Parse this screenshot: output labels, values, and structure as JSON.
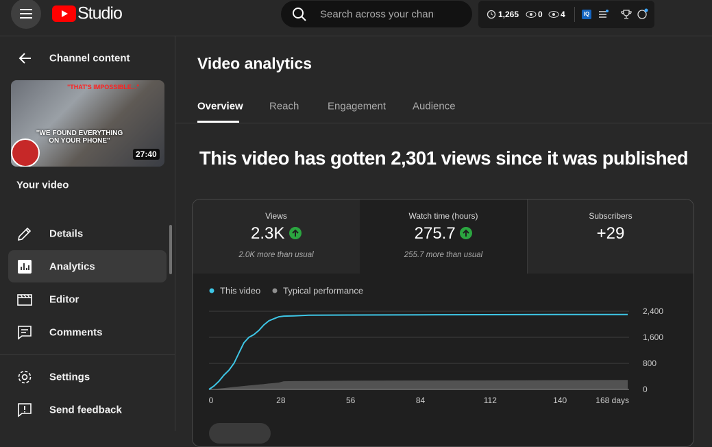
{
  "header": {
    "logo": "Studio",
    "search_placeholder": "Search across your channel",
    "stats": [
      "1,265",
      "0",
      "4"
    ],
    "badge": "IQ"
  },
  "sidebar": {
    "title": "Channel content",
    "thumbnail_caption_top": "\"THAT'S IMPOSSIBLE...\"",
    "thumbnail_caption": "\"WE FOUND EVERYTHING ON YOUR PHONE\"",
    "duration": "27:40",
    "video_label": "Your video",
    "nav": [
      "Details",
      "Analytics",
      "Editor",
      "Comments"
    ],
    "footer_nav": [
      "Settings",
      "Send feedback"
    ]
  },
  "main": {
    "title": "Video analytics",
    "tabs": [
      "Overview",
      "Reach",
      "Engagement",
      "Audience"
    ],
    "headline": "This video has gotten 2,301 views since it was published",
    "metrics": [
      {
        "label": "Views",
        "value": "2.3K",
        "note": "2.0K more than usual"
      },
      {
        "label": "Watch time (hours)",
        "value": "275.7",
        "note": "255.7 more than usual"
      },
      {
        "label": "Subscribers",
        "value": "+29"
      }
    ]
  },
  "chart_data": {
    "type": "line",
    "x": [
      0,
      2,
      4,
      6,
      8,
      10,
      12,
      14,
      16,
      18,
      20,
      22,
      24,
      26,
      28,
      30,
      34,
      40,
      56,
      84,
      112,
      140,
      168
    ],
    "series": [
      {
        "name": "This video",
        "color": "#3ec6e6",
        "values": [
          0,
          105,
          250,
          440,
          590,
          800,
          1115,
          1430,
          1600,
          1685,
          1810,
          1980,
          2105,
          2170,
          2230,
          2250,
          2260,
          2280,
          2285,
          2290,
          2295,
          2298,
          2301
        ]
      },
      {
        "name": "Typical performance",
        "color": "#909090",
        "values": [
          0,
          10,
          25,
          40,
          60,
          75,
          90,
          105,
          120,
          135,
          150,
          165,
          180,
          195,
          210,
          250,
          255,
          260,
          270,
          275,
          280,
          285,
          290
        ]
      }
    ],
    "xlim": [
      0,
      168
    ],
    "xticks": [
      0,
      28,
      56,
      84,
      112,
      140,
      {
        "value": 168,
        "label": "168 days"
      }
    ],
    "ylim": [
      0,
      2400
    ],
    "yticks": [
      0,
      800,
      {
        "value": 1600,
        "label": "1,600"
      },
      {
        "value": 2400,
        "label": "2,400"
      }
    ],
    "grid": true
  }
}
